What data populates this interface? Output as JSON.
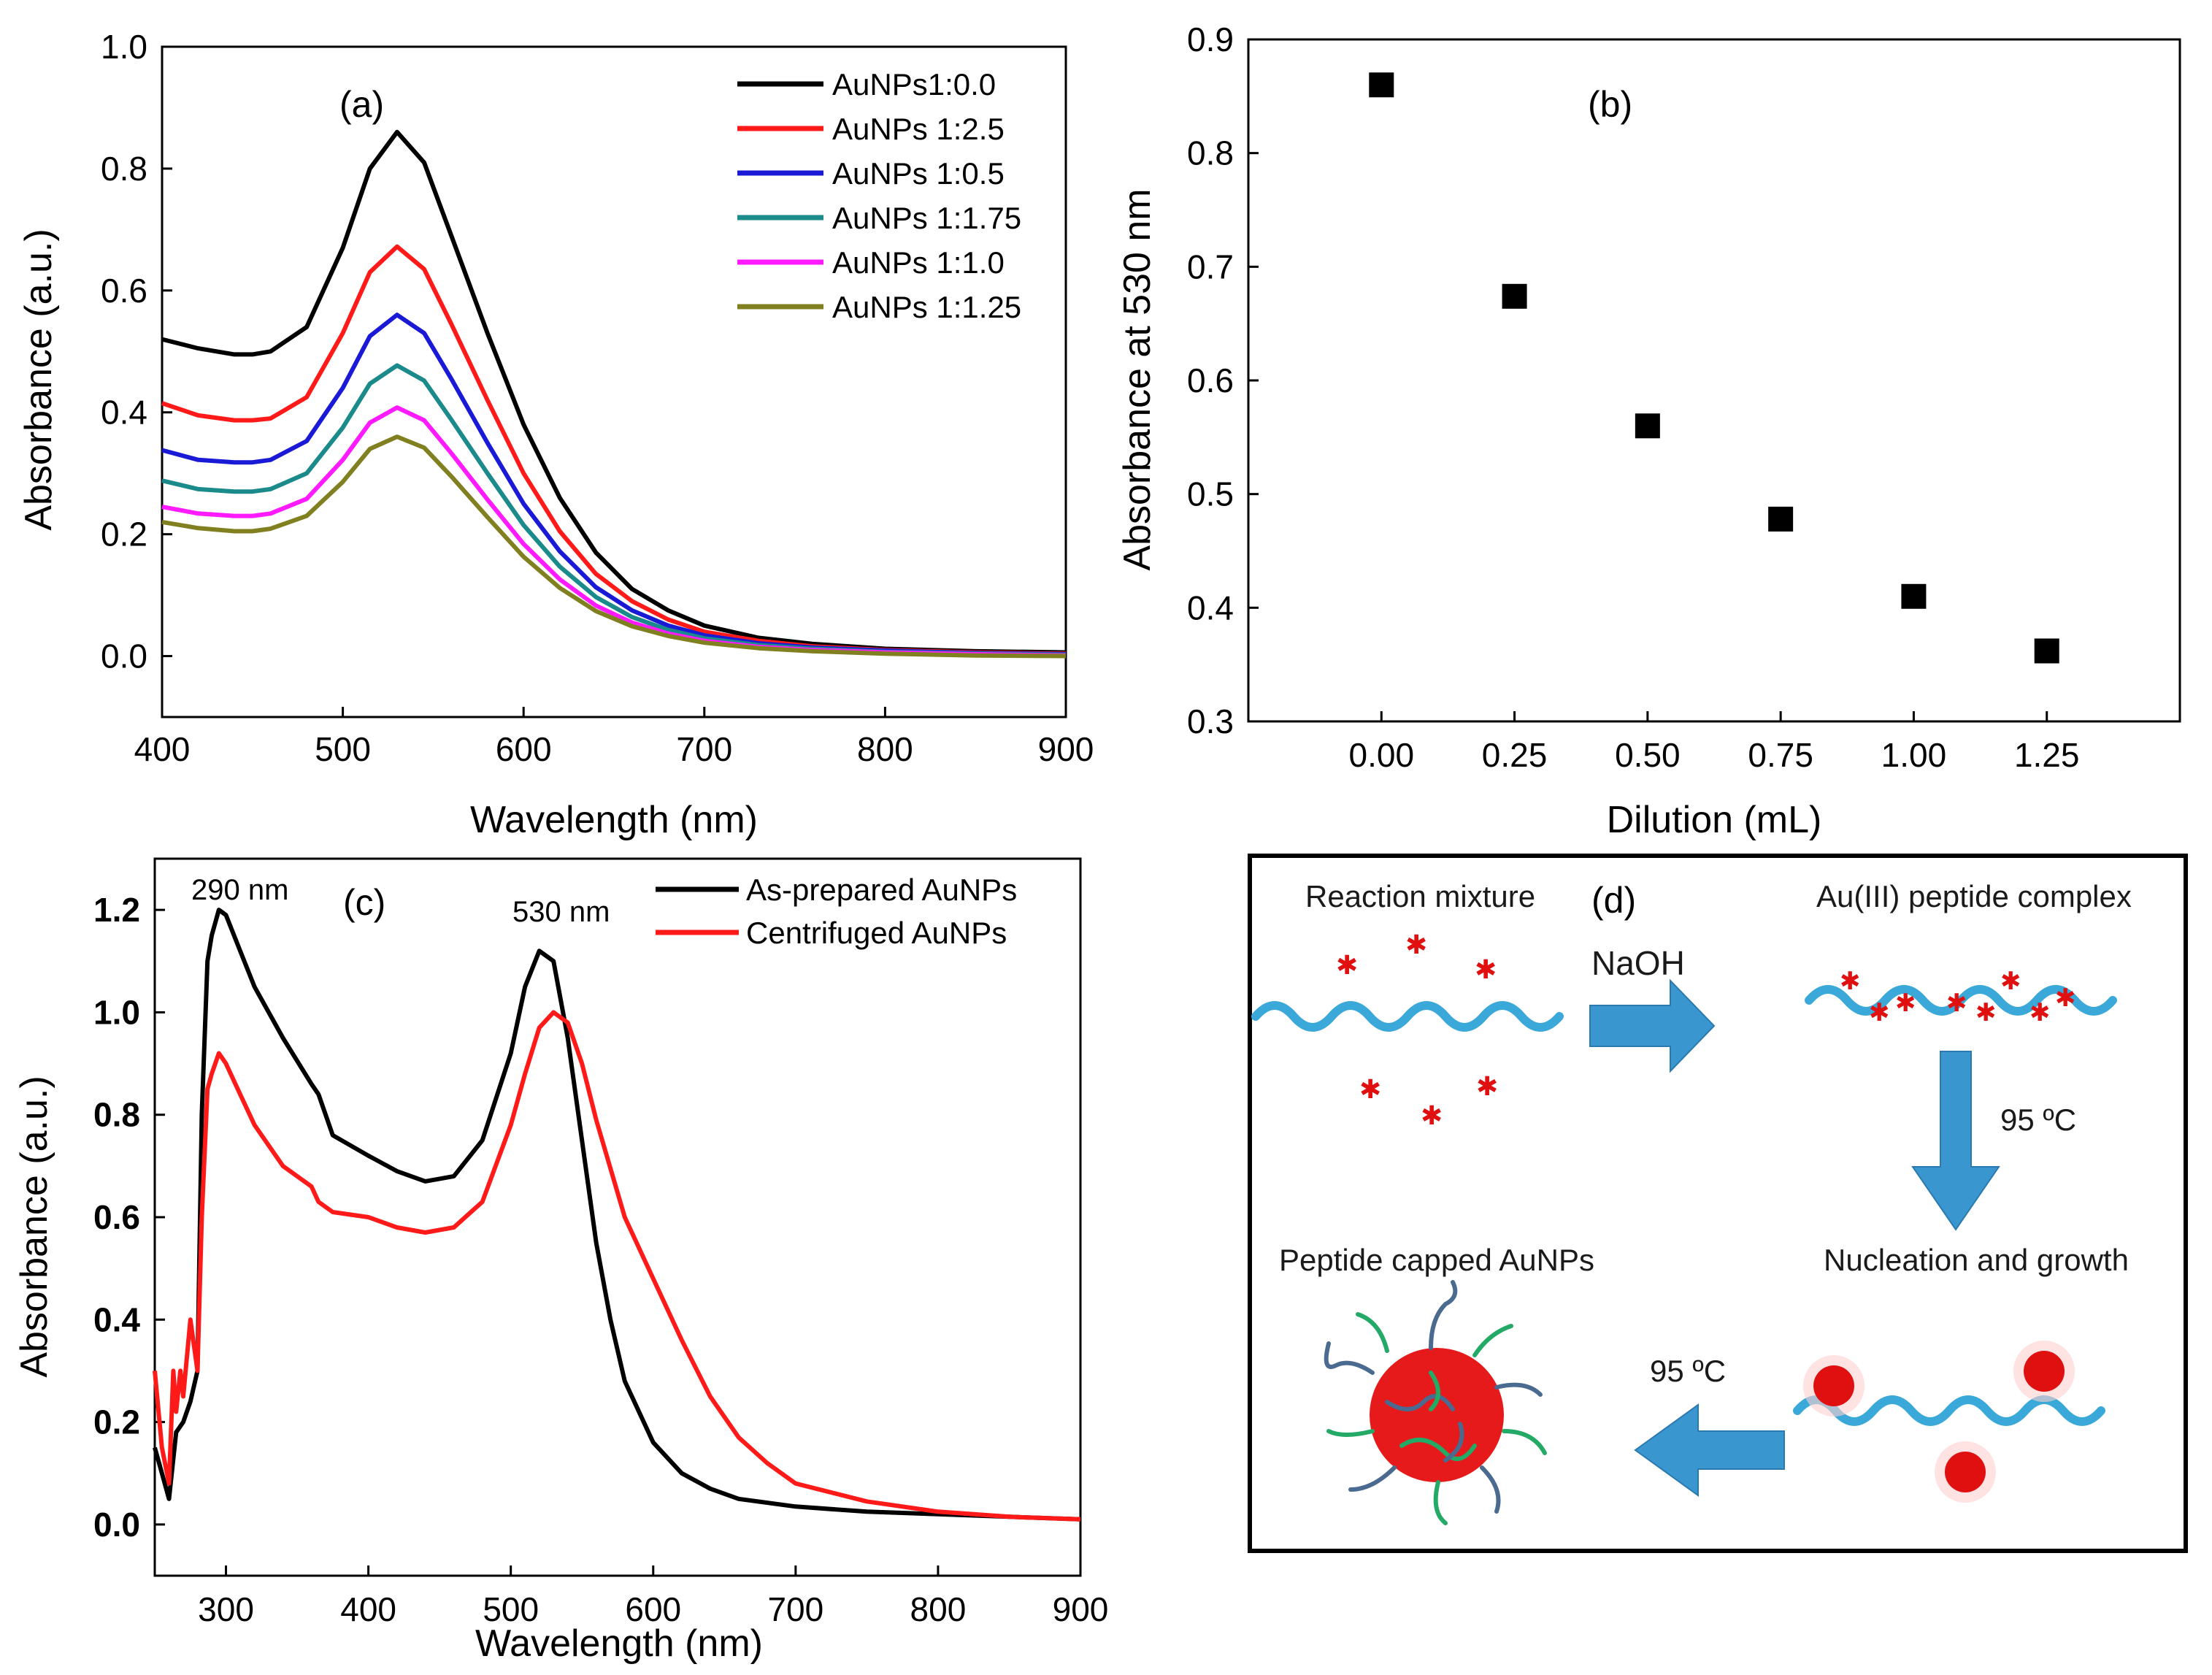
{
  "chart_data": [
    {
      "panel": "(a)",
      "type": "line",
      "xlabel": "Wavelength (nm)",
      "ylabel": "Absorbance (a.u.)",
      "xlim": [
        400,
        900
      ],
      "ylim": [
        -0.1,
        1.0
      ],
      "xticks": [
        "400",
        "500",
        "600",
        "700",
        "800",
        "900"
      ],
      "yticks": [
        "0.0",
        "0.2",
        "0.4",
        "0.6",
        "0.8",
        "1.0"
      ],
      "legend_position": "top-right",
      "x": [
        400,
        420,
        440,
        450,
        460,
        480,
        500,
        515,
        530,
        545,
        560,
        580,
        600,
        620,
        640,
        660,
        680,
        700,
        730,
        760,
        800,
        850,
        900
      ],
      "series": [
        {
          "name": "AuNPs1:0.0",
          "color": "#000000",
          "values": [
            0.52,
            0.505,
            0.495,
            0.495,
            0.5,
            0.54,
            0.67,
            0.8,
            0.86,
            0.81,
            0.69,
            0.53,
            0.38,
            0.26,
            0.17,
            0.11,
            0.075,
            0.05,
            0.03,
            0.02,
            0.012,
            0.008,
            0.006
          ]
        },
        {
          "name": "AuNPs 1:2.5",
          "color": "#ff1a1a",
          "values": [
            0.415,
            0.395,
            0.387,
            0.387,
            0.39,
            0.425,
            0.53,
            0.63,
            0.672,
            0.635,
            0.545,
            0.42,
            0.3,
            0.205,
            0.135,
            0.09,
            0.06,
            0.04,
            0.025,
            0.016,
            0.01,
            0.006,
            0.004
          ]
        },
        {
          "name": "AuNPs 1:0.5",
          "color": "#1a1ad6",
          "values": [
            0.338,
            0.322,
            0.318,
            0.318,
            0.322,
            0.353,
            0.44,
            0.525,
            0.56,
            0.53,
            0.455,
            0.35,
            0.25,
            0.172,
            0.113,
            0.075,
            0.05,
            0.034,
            0.021,
            0.014,
            0.009,
            0.005,
            0.003
          ]
        },
        {
          "name": "AuNPs 1:1.75",
          "color": "#1a8a8a",
          "values": [
            0.288,
            0.274,
            0.27,
            0.27,
            0.274,
            0.3,
            0.375,
            0.447,
            0.477,
            0.452,
            0.388,
            0.3,
            0.215,
            0.147,
            0.097,
            0.064,
            0.043,
            0.029,
            0.018,
            0.012,
            0.007,
            0.004,
            0.002
          ]
        },
        {
          "name": "AuNPs 1:1.0",
          "color": "#ff1aff",
          "values": [
            0.245,
            0.234,
            0.23,
            0.23,
            0.234,
            0.258,
            0.322,
            0.383,
            0.408,
            0.387,
            0.333,
            0.257,
            0.184,
            0.126,
            0.083,
            0.055,
            0.037,
            0.025,
            0.015,
            0.01,
            0.006,
            0.003,
            0.001
          ]
        },
        {
          "name": "AuNPs 1:1.25",
          "color": "#808020",
          "values": [
            0.22,
            0.21,
            0.205,
            0.205,
            0.209,
            0.23,
            0.286,
            0.34,
            0.36,
            0.342,
            0.295,
            0.228,
            0.163,
            0.112,
            0.074,
            0.049,
            0.033,
            0.022,
            0.013,
            0.008,
            0.004,
            0.001,
            0.0
          ]
        }
      ]
    },
    {
      "panel": "(b)",
      "type": "scatter",
      "xlabel": "Dilution (mL)",
      "ylabel": "Absorbance at 530 nm",
      "xlim": [
        -0.25,
        1.5
      ],
      "ylim": [
        0.3,
        0.9
      ],
      "xticks": [
        "0.00",
        "0.25",
        "0.50",
        "0.75",
        "1.00",
        "1.25"
      ],
      "yticks": [
        "0.3",
        "0.4",
        "0.5",
        "0.6",
        "0.7",
        "0.8",
        "0.9"
      ],
      "x": [
        0.0,
        0.25,
        0.5,
        0.75,
        1.0,
        1.25
      ],
      "y": [
        0.86,
        0.674,
        0.56,
        0.478,
        0.41,
        0.362
      ]
    },
    {
      "panel": "(c)",
      "type": "line",
      "xlabel": "Wavelength (nm)",
      "ylabel": "Absorbance (a.u.)",
      "xlim": [
        250,
        900
      ],
      "ylim": [
        -0.1,
        1.3
      ],
      "xticks": [
        "300",
        "400",
        "500",
        "600",
        "700",
        "800",
        "900"
      ],
      "yticks": [
        "0.0",
        "0.2",
        "0.4",
        "0.6",
        "0.8",
        "1.0",
        "1.2"
      ],
      "legend_position": "top-right",
      "annotations": [
        "290 nm",
        "530 nm"
      ],
      "series": [
        {
          "name": "As-prepared AuNPs",
          "color": "#000000",
          "x": [
            250,
            255,
            260,
            265,
            270,
            275,
            280,
            283,
            287,
            290,
            295,
            300,
            310,
            320,
            340,
            360,
            365,
            375,
            400,
            420,
            440,
            460,
            480,
            500,
            510,
            520,
            530,
            540,
            550,
            560,
            570,
            580,
            600,
            620,
            640,
            660,
            700,
            750,
            800,
            850,
            900
          ],
          "values": [
            0.15,
            0.1,
            0.05,
            0.18,
            0.2,
            0.24,
            0.3,
            0.8,
            1.1,
            1.15,
            1.2,
            1.19,
            1.12,
            1.05,
            0.95,
            0.86,
            0.84,
            0.76,
            0.72,
            0.69,
            0.67,
            0.68,
            0.75,
            0.92,
            1.05,
            1.12,
            1.1,
            0.95,
            0.75,
            0.55,
            0.4,
            0.28,
            0.16,
            0.1,
            0.07,
            0.05,
            0.035,
            0.025,
            0.02,
            0.015,
            0.01
          ]
        },
        {
          "name": "Centrifuged AuNPs",
          "color": "#ff1a1a",
          "x": [
            250,
            255,
            260,
            263,
            265,
            268,
            270,
            275,
            280,
            283,
            287,
            290,
            295,
            300,
            310,
            320,
            340,
            360,
            365,
            375,
            400,
            420,
            440,
            460,
            480,
            500,
            510,
            520,
            530,
            540,
            550,
            560,
            580,
            600,
            620,
            640,
            660,
            680,
            700,
            750,
            800,
            850,
            900
          ],
          "values": [
            0.3,
            0.15,
            0.08,
            0.3,
            0.22,
            0.3,
            0.25,
            0.4,
            0.3,
            0.6,
            0.85,
            0.88,
            0.92,
            0.9,
            0.84,
            0.78,
            0.7,
            0.66,
            0.63,
            0.61,
            0.6,
            0.58,
            0.57,
            0.58,
            0.63,
            0.78,
            0.88,
            0.97,
            1.0,
            0.98,
            0.9,
            0.79,
            0.6,
            0.48,
            0.36,
            0.25,
            0.17,
            0.12,
            0.08,
            0.045,
            0.025,
            0.015,
            0.01
          ]
        }
      ]
    }
  ],
  "panels": {
    "a": {
      "label": "(a)"
    },
    "b": {
      "label": "(b)"
    },
    "c": {
      "label": "(c)",
      "ann_290": "290 nm",
      "ann_530": "530 nm"
    },
    "d": {
      "label": "(d)",
      "reaction_mixture": "Reaction mixture",
      "complex": "Au(III) peptide complex",
      "naoh": "NaOH",
      "temp1": "95 ºC",
      "nucleation": "Nucleation and growth",
      "temp2": "95 ºC",
      "capped": "Peptide capped AuNPs"
    }
  },
  "colors": {
    "arrow_blue": "#3a96cf",
    "wave_blue": "#3aa8d8",
    "particle_red": "#e01010",
    "ligand_green": "#22aa66",
    "ligand_slate": "#4a6a90"
  }
}
